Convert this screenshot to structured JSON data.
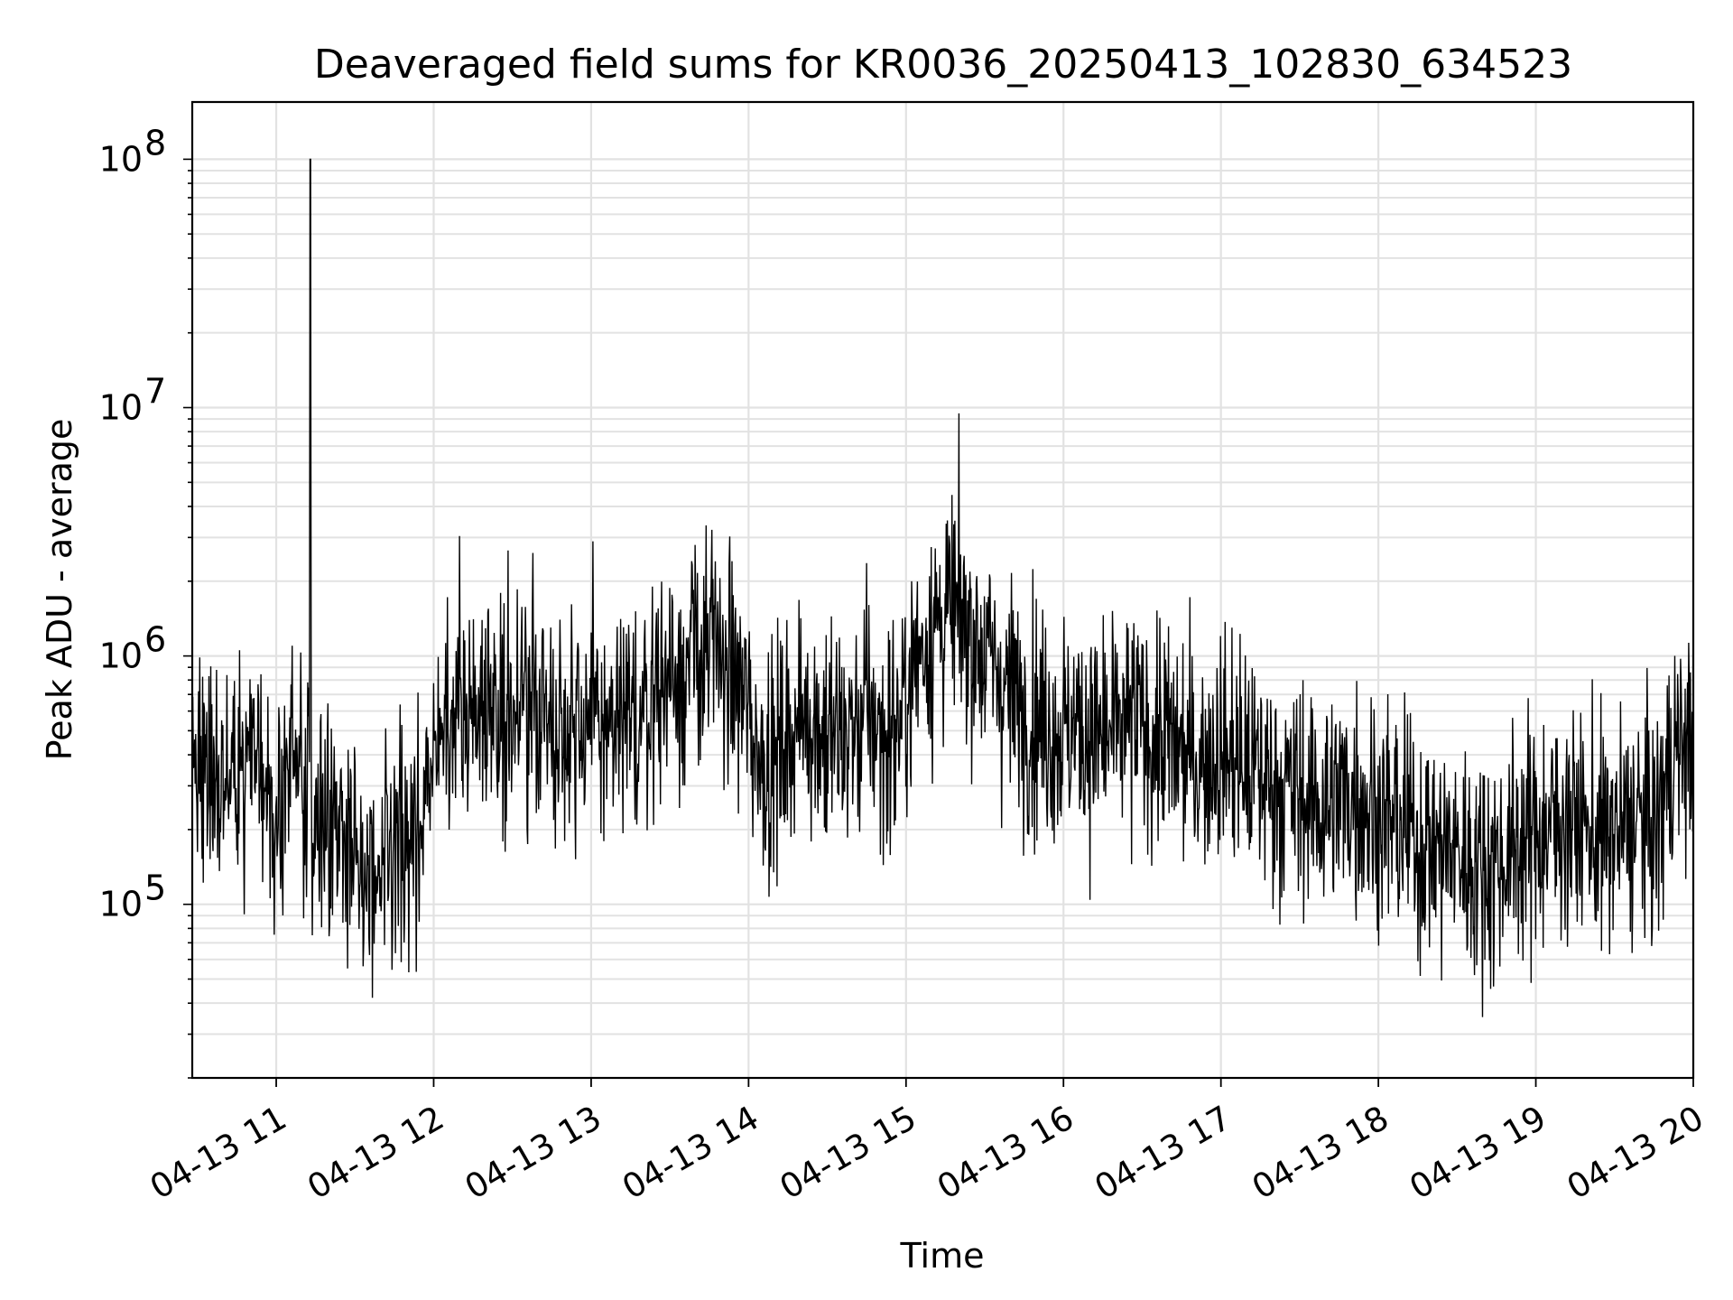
{
  "chart_data": {
    "type": "line",
    "title": "Deaveraged field sums for KR0036_20250413_102830_634523",
    "xlabel": "Time",
    "ylabel": "Peak ADU - average",
    "yscale": "log",
    "ylim": [
      20000,
      170000000
    ],
    "xlim": [
      "04-13 10:28",
      "04-13 20:00"
    ],
    "grid": true,
    "line_color": "#000000",
    "x_ticks": [
      "04-13 11",
      "04-13 12",
      "04-13 13",
      "04-13 14",
      "04-13 15",
      "04-13 16",
      "04-13 17",
      "04-13 18",
      "04-13 19",
      "04-13 20"
    ],
    "y_ticks": [
      {
        "base": "10",
        "exp": "5",
        "value": 100000
      },
      {
        "base": "10",
        "exp": "6",
        "value": 1000000
      },
      {
        "base": "10",
        "exp": "7",
        "value": 10000000
      },
      {
        "base": "10",
        "exp": "8",
        "value": 100000000
      }
    ],
    "series": [
      {
        "x": [
          "10:28",
          "10:34",
          "10:40",
          "10:46",
          "10:52",
          "10:58",
          "11:04",
          "11:10",
          "11:13",
          "11:16",
          "11:22",
          "11:28",
          "11:34",
          "11:40",
          "11:46",
          "11:52",
          "11:58",
          "12:04",
          "12:10",
          "12:16",
          "12:22",
          "12:28",
          "12:34",
          "12:40",
          "12:46",
          "12:52",
          "12:58",
          "13:04",
          "13:10",
          "13:16",
          "13:22",
          "13:28",
          "13:34",
          "13:40",
          "13:46",
          "13:52",
          "13:58",
          "14:04",
          "14:10",
          "14:16",
          "14:22",
          "14:28",
          "14:34",
          "14:40",
          "14:46",
          "14:52",
          "14:58",
          "15:04",
          "15:10",
          "15:16",
          "15:22",
          "15:28",
          "15:34",
          "15:40",
          "15:46",
          "15:52",
          "15:58",
          "16:04",
          "16:10",
          "16:16",
          "16:22",
          "16:28",
          "16:34",
          "16:40",
          "16:46",
          "16:52",
          "16:58",
          "17:04",
          "17:10",
          "17:16",
          "17:22",
          "17:28",
          "17:34",
          "17:40",
          "17:46",
          "17:52",
          "17:58",
          "18:04",
          "18:10",
          "18:16",
          "18:22",
          "18:28",
          "18:34",
          "18:40",
          "18:46",
          "18:52",
          "18:58",
          "19:04",
          "19:10",
          "19:16",
          "19:22",
          "19:28",
          "19:34",
          "19:40",
          "19:46",
          "19:52",
          "19:58",
          "20:00"
        ],
        "y": [
          400000,
          300000,
          350000,
          320000,
          400000,
          250000,
          300000,
          380000,
          100000000,
          250000,
          200000,
          180000,
          130000,
          120000,
          140000,
          200000,
          300000,
          500000,
          650000,
          700000,
          600000,
          650000,
          550000,
          700000,
          500000,
          600000,
          550000,
          520000,
          480000,
          500000,
          700000,
          800000,
          900000,
          1000000,
          1100000,
          900000,
          700000,
          400000,
          380000,
          500000,
          600000,
          500000,
          450000,
          500000,
          600000,
          450000,
          550000,
          1000000,
          1300000,
          1500000,
          1400000,
          1100000,
          900000,
          700000,
          600000,
          550000,
          500000,
          520000,
          480000,
          450000,
          500000,
          550000,
          480000,
          450000,
          400000,
          380000,
          420000,
          400000,
          350000,
          330000,
          300000,
          280000,
          260000,
          250000,
          270000,
          280000,
          240000,
          220000,
          200000,
          180000,
          170000,
          160000,
          150000,
          140000,
          150000,
          170000,
          190000,
          200000,
          220000,
          210000,
          190000,
          180000,
          200000,
          220000,
          200000,
          400000,
          450000,
          500000
        ]
      }
    ]
  }
}
